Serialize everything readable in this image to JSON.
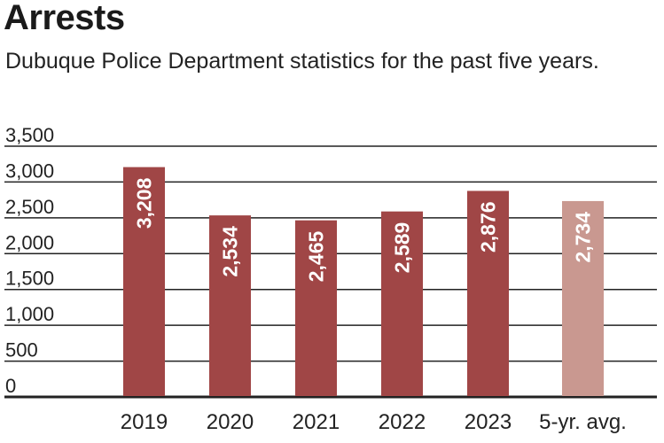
{
  "chart_data": {
    "type": "bar",
    "title": "Arrests",
    "subtitle": "Dubuque Police Department statistics for the past five years.",
    "categories": [
      "2019",
      "2020",
      "2021",
      "2022",
      "2023",
      "5-yr. avg."
    ],
    "values": [
      3208,
      2534,
      2465,
      2589,
      2876,
      2734
    ],
    "value_labels": [
      "3,208",
      "2,534",
      "2,465",
      "2,589",
      "2,876",
      "2,734"
    ],
    "ylim": [
      0,
      3500
    ],
    "yticks": [
      0,
      500,
      1000,
      1500,
      2000,
      2500,
      3000,
      3500
    ],
    "ytick_labels": [
      "0",
      "500",
      "1,000",
      "1,500",
      "2,000",
      "2,500",
      "3,000",
      "3,500"
    ],
    "grid": true,
    "colors": {
      "bar": "#a04646",
      "average_bar": "#c99890",
      "grid": "#222222"
    }
  }
}
